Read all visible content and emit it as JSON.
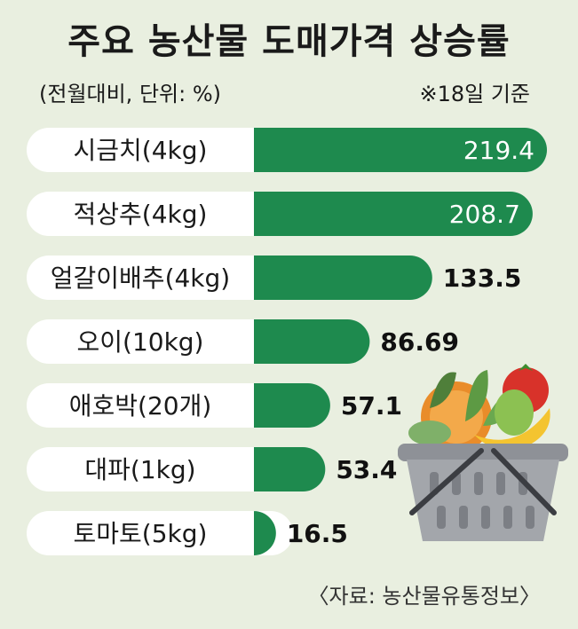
{
  "header": {
    "title": "주요 농산물 도매가격 상승률",
    "subtitle": "(전월대비, 단위: %)",
    "basis": "※18일 기준"
  },
  "footer": {
    "source": "〈자료: 농산물유통정보〉"
  },
  "colors": {
    "bar": "#1e8a4e",
    "label_pill": "#ffffff",
    "background": "#e9efe0"
  },
  "chart_data": {
    "type": "bar",
    "orientation": "horizontal",
    "title": "주요 농산물 도매가격 상승률",
    "subtitle": "(전월대비, 단위: %)",
    "categories": [
      "시금치(4kg)",
      "적상추(4kg)",
      "얼갈이배추(4kg)",
      "오이(10kg)",
      "애호박(20개)",
      "대파(1kg)",
      "토마토(5kg)"
    ],
    "values": [
      219.4,
      208.7,
      133.5,
      86.69,
      57.1,
      53.4,
      16.5
    ],
    "value_labels": [
      "219.4",
      "208.7",
      "133.5",
      "86.69",
      "57.1",
      "53.4",
      "16.5"
    ],
    "legend": false,
    "grid": false
  }
}
